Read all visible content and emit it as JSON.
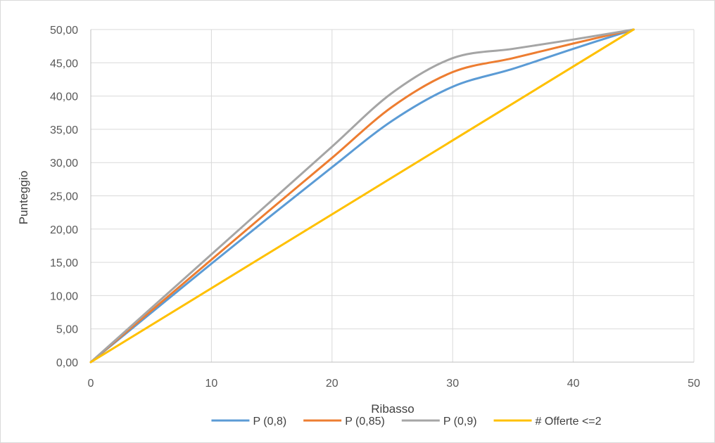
{
  "chart_data": {
    "type": "line",
    "title": "",
    "xlabel": "Ribasso",
    "ylabel": "Punteggio",
    "xlim": [
      0,
      50
    ],
    "ylim": [
      0,
      50
    ],
    "xticks": [
      0,
      10,
      20,
      30,
      40,
      50
    ],
    "xtick_labels": [
      "0",
      "10",
      "20",
      "30",
      "40",
      "50"
    ],
    "yticks": [
      0,
      5,
      10,
      15,
      20,
      25,
      30,
      35,
      40,
      45,
      50
    ],
    "ytick_labels": [
      "0,00",
      "5,00",
      "10,00",
      "15,00",
      "20,00",
      "25,00",
      "30,00",
      "35,00",
      "40,00",
      "45,00",
      "50,00"
    ],
    "grid": true,
    "legend_position": "bottom",
    "series": [
      {
        "name": "P (0,8)",
        "color": "#5b9bd5",
        "x": [
          0,
          5,
          10,
          15,
          20,
          25,
          30,
          35,
          40,
          45
        ],
        "y": [
          0,
          7.4,
          14.8,
          22.1,
          29.3,
          36.3,
          41.4,
          44.1,
          47.1,
          50
        ]
      },
      {
        "name": "P (0,85)",
        "color": "#ed7d31",
        "x": [
          0,
          5,
          10,
          15,
          20,
          25,
          30,
          35,
          40,
          45
        ],
        "y": [
          0,
          7.7,
          15.4,
          23.1,
          30.7,
          38.4,
          43.6,
          45.7,
          47.9,
          50
        ]
      },
      {
        "name": "P (0,9)",
        "color": "#a5a5a5",
        "x": [
          0,
          5,
          10,
          15,
          20,
          25,
          30,
          35,
          40,
          45
        ],
        "y": [
          0,
          8.1,
          16.2,
          24.3,
          32.4,
          40.5,
          45.7,
          47.1,
          48.5,
          50
        ]
      },
      {
        "name": "# Offerte <=2",
        "color": "#ffc000",
        "x": [
          0,
          45
        ],
        "y": [
          0,
          50
        ]
      }
    ]
  }
}
